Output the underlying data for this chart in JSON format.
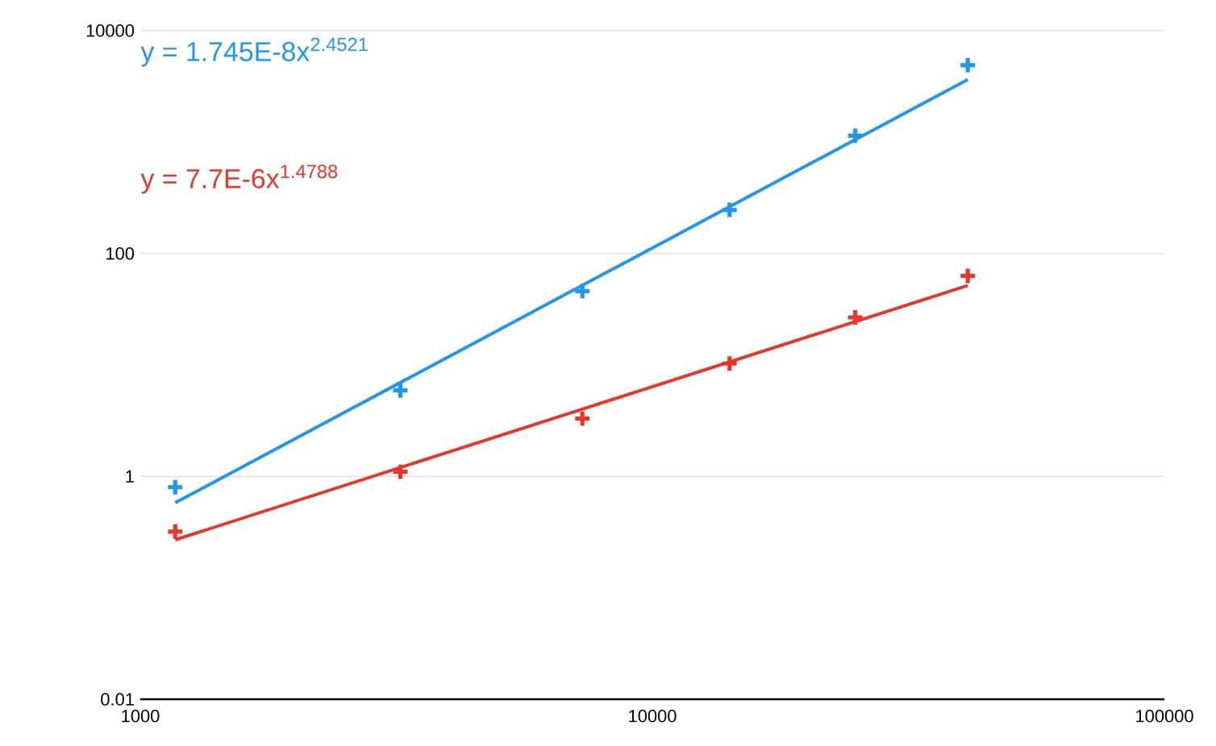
{
  "chart_data": {
    "type": "scatter",
    "log": "xy",
    "grid": "y",
    "marker": "cross",
    "xlim": [
      1000,
      100000
    ],
    "xticks": [
      1000,
      10000,
      100000
    ],
    "ylim": [
      0.01,
      10000
    ],
    "yticks": [
      0.01,
      1,
      100,
      10000
    ],
    "series": [
      {
        "color": "#2196f0",
        "x": [
          1170,
          3220,
          7300,
          14150,
          24900,
          41300
        ],
        "values": [
          0.8,
          5.9,
          46,
          246,
          1140,
          4900
        ]
      },
      {
        "color": "#e8362a",
        "x": [
          1170,
          3220,
          7300,
          14150,
          24900,
          41300
        ],
        "values": [
          0.32,
          1.1,
          3.3,
          10.3,
          26.7,
          63
        ]
      },
      {
        "type": "line",
        "marker": "none",
        "name": "y = 1.745E-8x$^{2.4521}$",
        "color": "#2196f0",
        "x": [
          1170,
          41300
        ],
        "values": [
          0.58,
          3640
        ]
      },
      {
        "type": "line",
        "marker": "none",
        "name": "y = 7.7E-6x$^{1.4788}$",
        "color": "#e8362a",
        "x": [
          1170,
          41300
        ],
        "values": [
          0.27,
          51.6
        ]
      }
    ]
  }
}
